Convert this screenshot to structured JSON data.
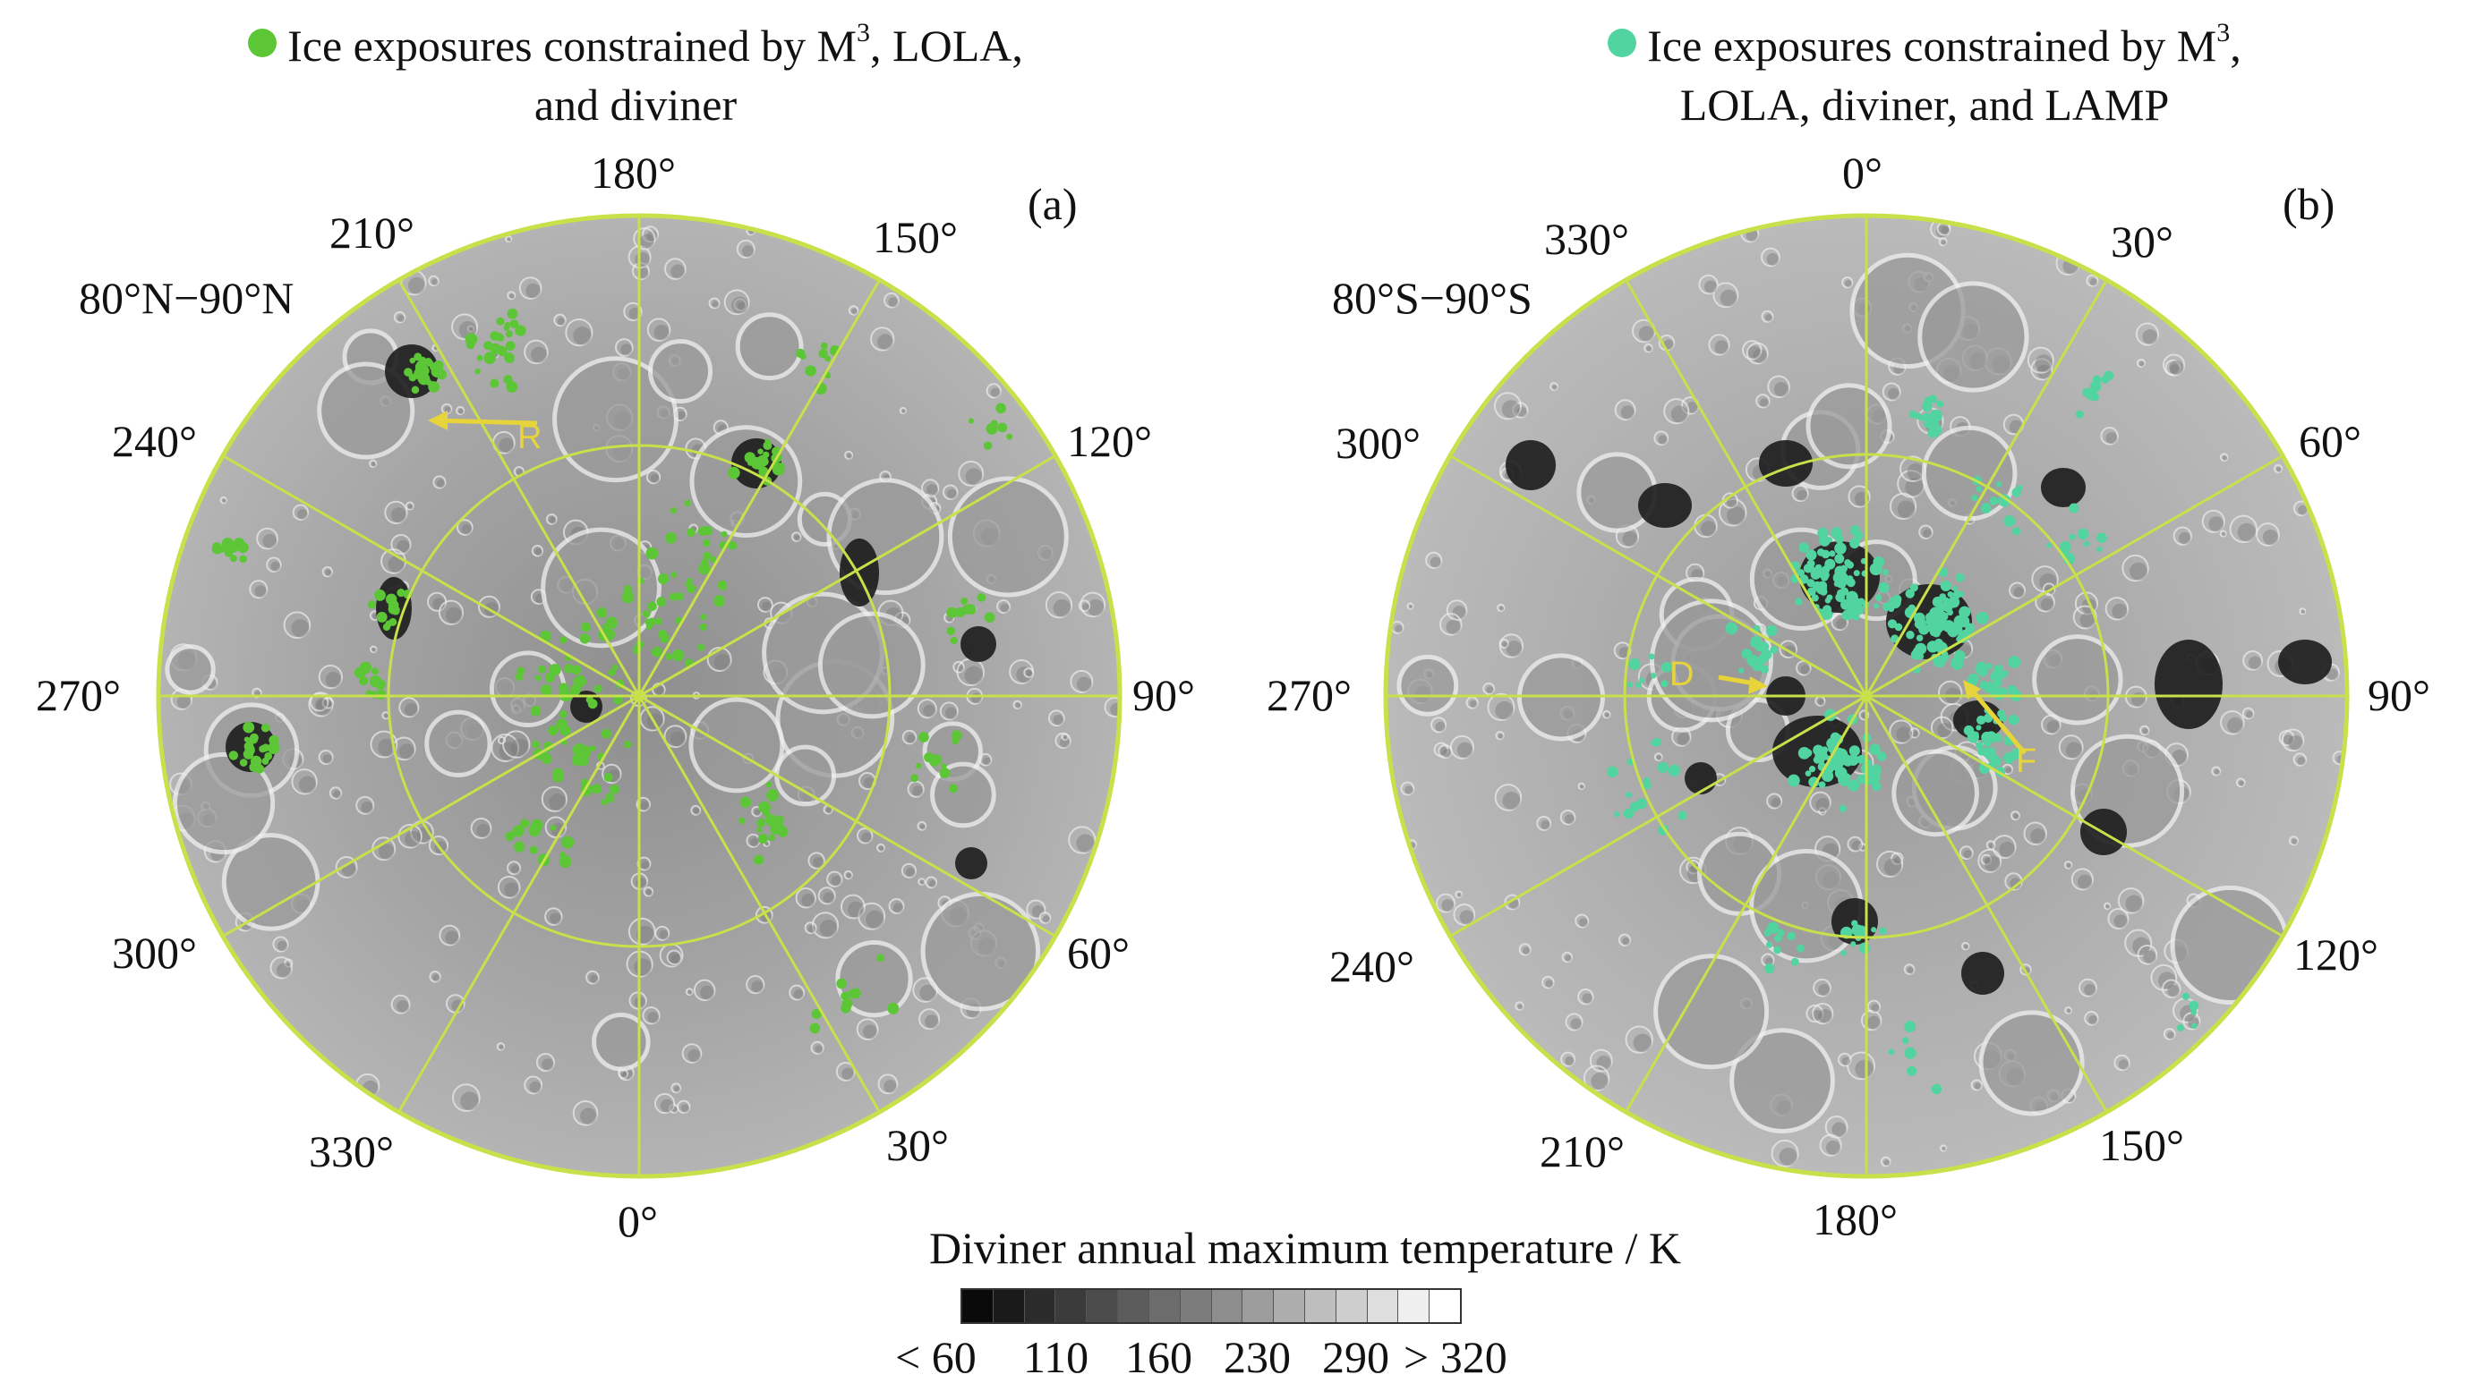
{
  "panel_a": {
    "legend_line1": "Ice exposures constrained by M",
    "legend_sup": "3",
    "legend_line1_end": ", LOLA,",
    "legend_line2": "and diviner",
    "legend_color": "#5cc636",
    "panel_label": "(a)",
    "region_label": "80°N−90°N",
    "arrow_label": "R",
    "longitudes": {
      "top": "180°",
      "top_right1": "150°",
      "right1": "120°",
      "right": "90°",
      "right2": "60°",
      "bottom_right": "30°",
      "bottom": "0°",
      "bottom_left": "330°",
      "left2": "300°",
      "left": "270°",
      "left1": "240°",
      "top_left": "210°"
    }
  },
  "panel_b": {
    "legend_line1": "Ice exposures constrained by M",
    "legend_sup": "3",
    "legend_line1_end": ",",
    "legend_line2": "LOLA, diviner, and LAMP",
    "legend_color": "#52d4a0",
    "panel_label": "(b)",
    "region_label": "80°S−90°S",
    "arrow_label_1": "D",
    "arrow_label_2": "F",
    "longitudes": {
      "top": "0°",
      "top_right1": "30°",
      "right1": "60°",
      "right": "90°",
      "right2": "120°",
      "bottom_right": "150°",
      "bottom": "180°",
      "bottom_left": "210°",
      "left2": "240°",
      "left": "270°",
      "left1": "300°",
      "top_left": "330°"
    }
  },
  "colorbar": {
    "title": "Diviner annual maximum temperature / K",
    "ticks": [
      "< 60",
      "110",
      "160",
      "230",
      "290",
      "> 320"
    ],
    "range_k": [
      60,
      320
    ]
  },
  "colors": {
    "grid_line": "#c8e04a",
    "arrow": "#e6d43a",
    "terrain": "#a3a3a3",
    "shadow": "#1c1c1c"
  }
}
